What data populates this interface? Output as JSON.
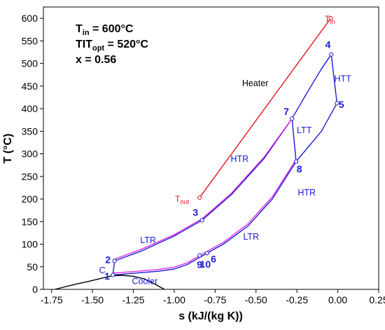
{
  "chart_data": {
    "type": "line",
    "xlabel": "s (kJ/(kg K))",
    "ylabel": "T (°C)",
    "xlim": [
      -1.8,
      0.25
    ],
    "ylim": [
      0,
      625
    ],
    "xticks": [
      "-1.75",
      "-1.50",
      "-1.25",
      "-1.00",
      "-0.75",
      "-0.50",
      "-0.25",
      "0.00",
      "0.25"
    ],
    "yticks": [
      "0",
      "50",
      "100",
      "150",
      "200",
      "250",
      "300",
      "350",
      "400",
      "450",
      "500",
      "550",
      "600"
    ],
    "grid": false,
    "legend": "none",
    "colors": {
      "cycle": "#1c1cd4",
      "recuperator": "#e01ee0",
      "heater": "#e8141e",
      "saturation": "#000000",
      "point_label": "#1c1cd4"
    },
    "info": {
      "tin": {
        "main": "T",
        "sub": "in",
        "rest": " = 600°C"
      },
      "tit": {
        "main": "TIT",
        "sub": "opt",
        "rest": " = 520°C"
      },
      "x": "x = 0.56"
    },
    "series": [
      {
        "key": "saturation_dome",
        "x": [
          -1.73,
          -1.62,
          -1.52,
          -1.44,
          -1.38,
          -1.32,
          -1.25,
          -1.18,
          -1.12,
          -1.06
        ],
        "y": [
          0,
          10,
          18,
          25,
          30,
          31,
          29,
          23,
          12,
          0
        ]
      },
      {
        "key": "cycle_1_2",
        "x": [
          -1.375,
          -1.365
        ],
        "y": [
          32,
          63
        ]
      },
      {
        "key": "cycle_2_3_7",
        "x": [
          -1.365,
          -1.2,
          -1.0,
          -0.83,
          -0.65,
          -0.45,
          -0.28
        ],
        "y": [
          63,
          85,
          118,
          153,
          210,
          290,
          378
        ]
      },
      {
        "key": "cycle_7_4",
        "x": [
          -0.28,
          -0.2,
          -0.1,
          -0.04
        ],
        "y": [
          378,
          428,
          488,
          520
        ]
      },
      {
        "key": "cycle_4_5",
        "x": [
          -0.04,
          -0.005
        ],
        "y": [
          520,
          412
        ]
      },
      {
        "key": "cycle_5_8_6",
        "x": [
          -0.005,
          -0.1,
          -0.255,
          -0.4,
          -0.55,
          -0.7,
          -0.8
        ],
        "y": [
          412,
          350,
          283,
          200,
          140,
          100,
          80
        ]
      },
      {
        "key": "cycle_6_9_1",
        "x": [
          -0.8,
          -0.92,
          -1.0,
          -1.1,
          -1.2,
          -1.3,
          -1.375
        ],
        "y": [
          80,
          55,
          45,
          40,
          37,
          34,
          32
        ]
      },
      {
        "key": "ltt_7_8",
        "x": [
          -0.28,
          -0.255
        ],
        "y": [
          378,
          283
        ]
      },
      {
        "key": "recuperator_cold",
        "x": [
          -1.365,
          -1.2,
          -1.0,
          -0.83,
          -0.65,
          -0.45,
          -0.28
        ],
        "y": [
          67,
          89,
          121,
          156,
          213,
          293,
          378
        ]
      },
      {
        "key": "recuperator_hot",
        "x": [
          -0.255,
          -0.4,
          -0.55,
          -0.7,
          -0.8,
          -0.92,
          -1.0,
          -1.1,
          -1.2,
          -1.3,
          -1.375
        ],
        "y": [
          287,
          205,
          145,
          104,
          84,
          59,
          49,
          44,
          41,
          38,
          36
        ]
      },
      {
        "key": "heater",
        "x": [
          -0.845,
          -0.043
        ],
        "y": [
          203,
          600
        ]
      }
    ],
    "markers": [
      {
        "x": -1.375,
        "y": 32,
        "color": "#1c1cd4"
      },
      {
        "x": -1.365,
        "y": 63,
        "color": "#1c1cd4"
      },
      {
        "x": -0.83,
        "y": 153,
        "color": "#1c1cd4"
      },
      {
        "x": -0.04,
        "y": 520,
        "color": "#1c1cd4"
      },
      {
        "x": -0.005,
        "y": 412,
        "color": "#1c1cd4"
      },
      {
        "x": -0.28,
        "y": 378,
        "color": "#1c1cd4"
      },
      {
        "x": -0.255,
        "y": 283,
        "color": "#1c1cd4"
      },
      {
        "x": -0.8,
        "y": 80,
        "color": "#1c1cd4"
      },
      {
        "x": -0.845,
        "y": 75,
        "color": "#1c1cd4"
      },
      {
        "x": -0.845,
        "y": 203,
        "color": "#e8141e"
      },
      {
        "x": -0.043,
        "y": 600,
        "color": "#e8141e"
      }
    ],
    "point_labels": [
      {
        "text": "1",
        "x": -1.41,
        "y": 22
      },
      {
        "text": "2",
        "x": -1.405,
        "y": 58
      },
      {
        "text": "3",
        "x": -0.87,
        "y": 163
      },
      {
        "text": "4",
        "x": -0.06,
        "y": 534
      },
      {
        "text": "5",
        "x": 0.022,
        "y": 402
      },
      {
        "text": "6",
        "x": -0.76,
        "y": 60
      },
      {
        "text": "7",
        "x": -0.315,
        "y": 386
      },
      {
        "text": "8",
        "x": -0.235,
        "y": 259
      },
      {
        "text": "9",
        "x": -0.845,
        "y": 47
      },
      {
        "text": "10",
        "x": -0.81,
        "y": 48
      }
    ],
    "component_labels": [
      {
        "text": "HTT",
        "x": 0.03,
        "y": 460,
        "color": "#1c1cd4"
      },
      {
        "text": "LTT",
        "x": -0.205,
        "y": 346,
        "color": "#1c1cd4"
      },
      {
        "text": "HTR",
        "x": -0.6,
        "y": 282,
        "color": "#1c1cd4"
      },
      {
        "text": "HTR",
        "x": -0.19,
        "y": 208,
        "color": "#1c1cd4"
      },
      {
        "text": "LTR",
        "x": -1.16,
        "y": 102,
        "color": "#1c1cd4"
      },
      {
        "text": "LTR",
        "x": -0.53,
        "y": 110,
        "color": "#1c1cd4"
      },
      {
        "text": "C",
        "x": -1.44,
        "y": 36,
        "color": "#1c1cd4"
      },
      {
        "text": "Cooler",
        "x": -1.18,
        "y": 12,
        "color": "#1c1cd4"
      },
      {
        "text": "Heater",
        "x": -0.505,
        "y": 450,
        "color": "#000000"
      }
    ],
    "end_labels": {
      "tout": {
        "main": "T",
        "sub": "out"
      },
      "tin": {
        "main": "T",
        "sub": "in"
      }
    }
  }
}
